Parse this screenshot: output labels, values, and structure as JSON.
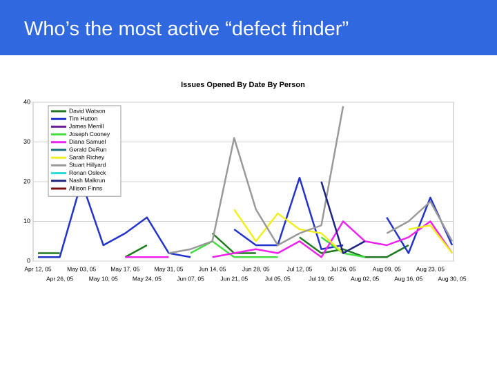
{
  "header": {
    "title": "Who’s the most active “defect finder”"
  },
  "chart_data": {
    "type": "line",
    "title": "Issues Opened By Date By Person",
    "categories": [
      "Apr 12, 05",
      "Apr 26, 05",
      "May 03, 05",
      "May 10, 05",
      "May 17, 05",
      "May 24, 05",
      "May 31, 05",
      "Jun 07, 05",
      "Jun 14, 05",
      "Jun 21, 05",
      "Jun 28, 05",
      "Jul 05, 05",
      "Jul 12, 05",
      "Jul 19, 05",
      "Jul 26, 05",
      "Aug 02, 05",
      "Aug 09, 05",
      "Aug 16, 05",
      "Aug 23, 05",
      "Aug 30, 05"
    ],
    "ylim": [
      0,
      40
    ],
    "yticks": [
      0,
      10,
      20,
      30,
      40
    ],
    "grid": true,
    "legend": "upper-left",
    "series": [
      {
        "name": "David Watson",
        "color": "#1f7a1f",
        "values": [
          2,
          2,
          null,
          null,
          1,
          4,
          null,
          null,
          7,
          2,
          2,
          null,
          6,
          2,
          3,
          1,
          1,
          4,
          null,
          null
        ]
      },
      {
        "name": "Tim Hutton",
        "color": "#2233cc",
        "values": [
          1,
          1,
          20,
          4,
          7,
          11,
          2,
          1,
          null,
          8,
          4,
          4,
          21,
          3,
          4,
          null,
          11,
          2,
          16,
          4
        ]
      },
      {
        "name": "James Merrill",
        "color": "#6a1b9a",
        "values": [
          null,
          null,
          null,
          null,
          null,
          null,
          null,
          null,
          null,
          null,
          null,
          null,
          null,
          null,
          null,
          null,
          null,
          null,
          null,
          null
        ]
      },
      {
        "name": "Joseph Cooney",
        "color": "#44dd44",
        "values": [
          null,
          null,
          null,
          null,
          null,
          null,
          null,
          2,
          5,
          1,
          1,
          1,
          null,
          6,
          2,
          1,
          null,
          null,
          null,
          null
        ]
      },
      {
        "name": "Diana Samuel",
        "color": "#ee22ee",
        "values": [
          null,
          null,
          null,
          null,
          1,
          1,
          1,
          null,
          1,
          2,
          3,
          2,
          5,
          1,
          10,
          5,
          4,
          6,
          10,
          2
        ]
      },
      {
        "name": "Gerald DeRun",
        "color": "#1b6f7a",
        "values": [
          null,
          null,
          null,
          null,
          null,
          null,
          null,
          null,
          null,
          null,
          null,
          null,
          null,
          null,
          null,
          null,
          null,
          null,
          null,
          null
        ]
      },
      {
        "name": "Sarah Richey",
        "color": "#f0f020",
        "values": [
          null,
          null,
          null,
          null,
          null,
          null,
          null,
          null,
          null,
          13,
          5,
          12,
          8,
          7,
          2,
          null,
          null,
          8,
          9,
          2
        ]
      },
      {
        "name": "Stuart Hillyard",
        "color": "#999999",
        "values": [
          null,
          null,
          null,
          null,
          null,
          null,
          2,
          3,
          5,
          31,
          13,
          4,
          7,
          9,
          39,
          null,
          7,
          10,
          15,
          5
        ]
      },
      {
        "name": "Ronan Osleck",
        "color": "#22dddd",
        "values": [
          null,
          null,
          null,
          null,
          null,
          null,
          null,
          null,
          null,
          null,
          null,
          null,
          null,
          null,
          null,
          null,
          null,
          null,
          null,
          null
        ]
      },
      {
        "name": "Nash Malkrun",
        "color": "#1a237e",
        "values": [
          null,
          null,
          null,
          null,
          null,
          null,
          null,
          null,
          null,
          null,
          null,
          null,
          null,
          20,
          2,
          5,
          null,
          null,
          null,
          null
        ]
      },
      {
        "name": "Allison Finns",
        "color": "#7a1010",
        "values": [
          null,
          null,
          null,
          null,
          null,
          null,
          null,
          null,
          null,
          null,
          null,
          null,
          null,
          null,
          null,
          null,
          null,
          null,
          null,
          null
        ]
      }
    ]
  }
}
